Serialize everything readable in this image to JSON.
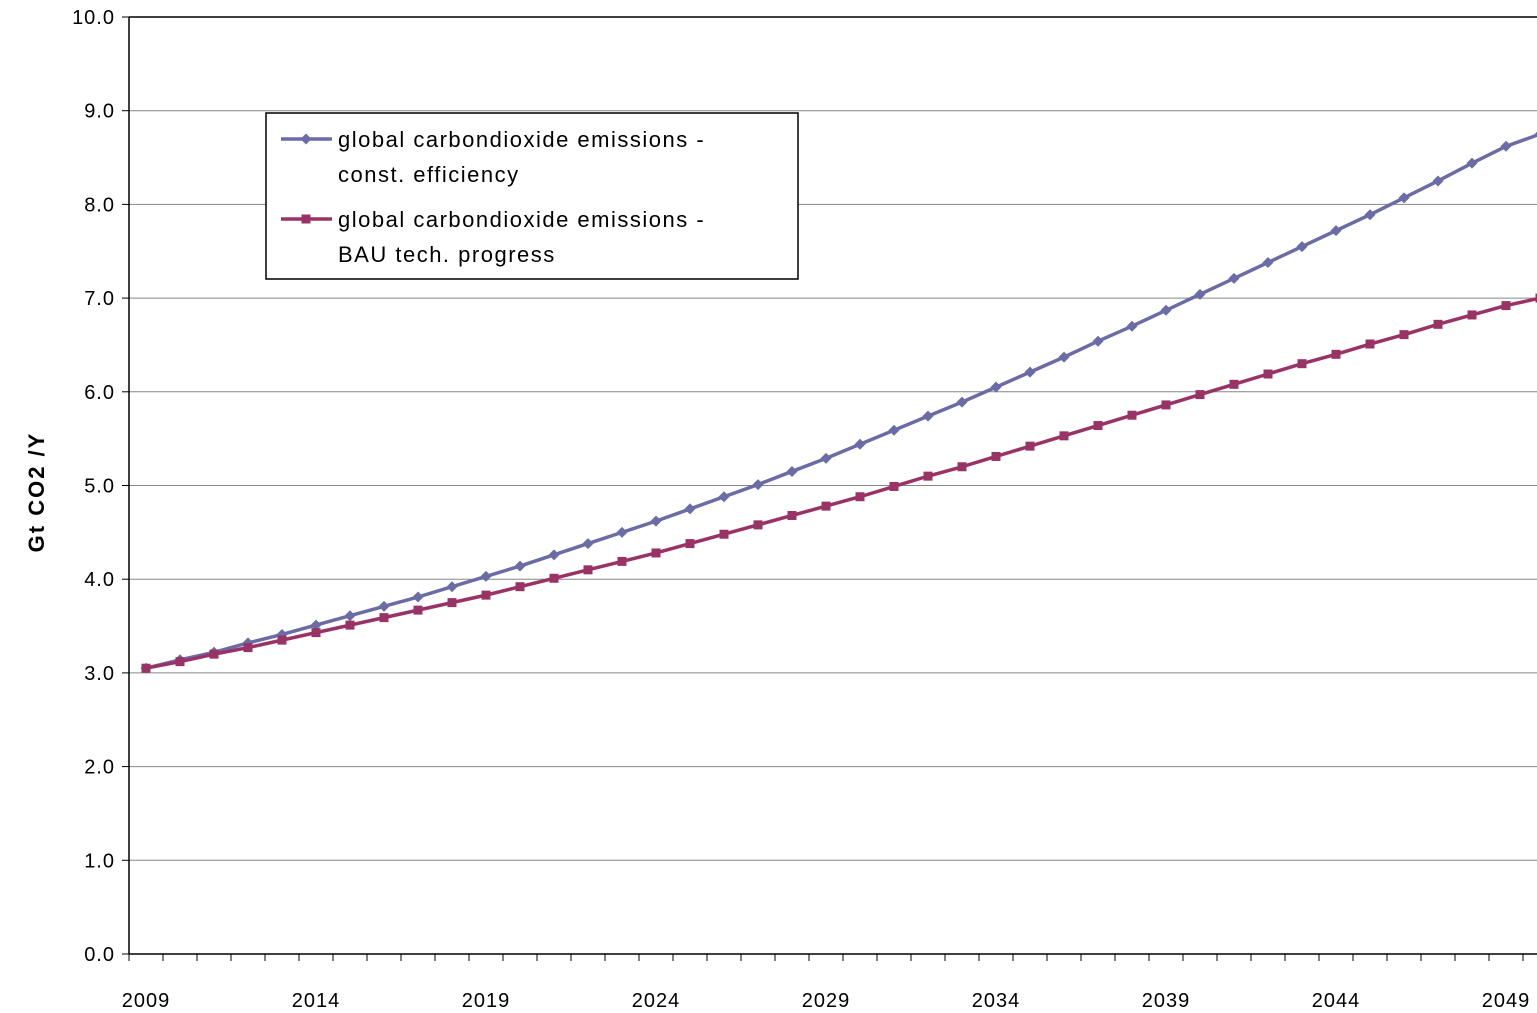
{
  "chart_data": {
    "type": "line",
    "title": "",
    "xlabel": "",
    "ylabel": "Gt CO2 /Y",
    "ylim": [
      0,
      10
    ],
    "yticks": [
      "0.0",
      "1.0",
      "2.0",
      "3.0",
      "4.0",
      "5.0",
      "6.0",
      "7.0",
      "8.0",
      "9.0",
      "10.0"
    ],
    "xlim": [
      2009,
      2050
    ],
    "xtick_labels": [
      "2009",
      "2014",
      "2019",
      "2024",
      "2029",
      "2034",
      "2039",
      "2044",
      "2049"
    ],
    "grid": "horizontal",
    "legend_placement": "top-left",
    "x": [
      2009,
      2010,
      2011,
      2012,
      2013,
      2014,
      2015,
      2016,
      2017,
      2018,
      2019,
      2020,
      2021,
      2022,
      2023,
      2024,
      2025,
      2026,
      2027,
      2028,
      2029,
      2030,
      2031,
      2032,
      2033,
      2034,
      2035,
      2036,
      2037,
      2038,
      2039,
      2040,
      2041,
      2042,
      2043,
      2044,
      2045,
      2046,
      2047,
      2048,
      2049,
      2050
    ],
    "series": [
      {
        "name_lines": [
          "global carbondioxide emissions -",
          "const. efficiency"
        ],
        "color": "#6b6ba6",
        "marker": "diamond",
        "values": [
          3.05,
          3.14,
          3.22,
          3.32,
          3.41,
          3.51,
          3.61,
          3.71,
          3.81,
          3.92,
          4.03,
          4.14,
          4.26,
          4.38,
          4.5,
          4.62,
          4.75,
          4.88,
          5.01,
          5.15,
          5.29,
          5.44,
          5.59,
          5.74,
          5.89,
          6.05,
          6.21,
          6.37,
          6.54,
          6.7,
          6.87,
          7.04,
          7.21,
          7.38,
          7.55,
          7.72,
          7.89,
          8.07,
          8.25,
          8.44,
          8.62,
          8.75
        ]
      },
      {
        "name_lines": [
          "global carbondioxide emissions -",
          "BAU tech. progress"
        ],
        "color": "#993366",
        "marker": "square",
        "values": [
          3.05,
          3.12,
          3.2,
          3.27,
          3.35,
          3.43,
          3.51,
          3.59,
          3.67,
          3.75,
          3.83,
          3.92,
          4.01,
          4.1,
          4.19,
          4.28,
          4.38,
          4.48,
          4.58,
          4.68,
          4.78,
          4.88,
          4.99,
          5.1,
          5.2,
          5.31,
          5.42,
          5.53,
          5.64,
          5.75,
          5.86,
          5.97,
          6.08,
          6.19,
          6.3,
          6.4,
          6.51,
          6.61,
          6.72,
          6.82,
          6.92,
          7.0
        ]
      }
    ]
  }
}
